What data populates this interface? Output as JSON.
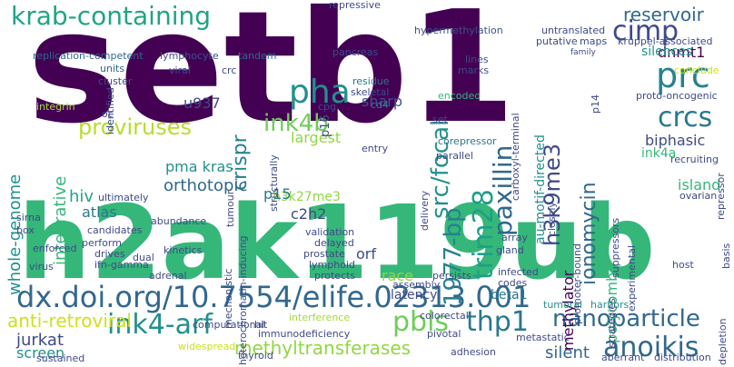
{
  "words": [
    {
      "text": "setb1",
      "color": "#440154"
    },
    {
      "text": "h2ak119ub",
      "color": "#35b779"
    },
    {
      "text": "dx.doi.org/10.7554/elife.02313.001",
      "color": "#31688e"
    },
    {
      "text": "krab-containing",
      "color": "#20a486"
    },
    {
      "text": "pha",
      "color": "#21918c"
    },
    {
      "text": "prc",
      "color": "#26828e"
    },
    {
      "text": "cimp",
      "color": "#3e4a89"
    },
    {
      "text": "crcs",
      "color": "#2a788e"
    },
    {
      "text": "ink4-arf",
      "color": "#21918c"
    },
    {
      "text": "pbls",
      "color": "#6ece58"
    },
    {
      "text": "thp1",
      "color": "#2a788e"
    },
    {
      "text": "anoikis",
      "color": "#31688e"
    },
    {
      "text": "nanoparticle",
      "color": "#31688e"
    },
    {
      "text": "proviruses",
      "color": "#b5de2b"
    },
    {
      "text": "ink4b",
      "color": "#6ece58"
    },
    {
      "text": "trim28",
      "color": "#1f9e89"
    },
    {
      "text": "paxillin",
      "color": "#31688e"
    },
    {
      "text": "ionomycin",
      "color": "#31688e"
    },
    {
      "text": "h3k9me3",
      "color": "#3e4a89"
    },
    {
      "text": "src/focal",
      "color": "#21918c"
    },
    {
      "text": "1977-bp",
      "color": "#26828e"
    },
    {
      "text": "reservoir",
      "color": "#31688e"
    },
    {
      "text": "anti-retroviral",
      "color": "#cde11d"
    },
    {
      "text": "methyltransferases",
      "color": "#90d743"
    },
    {
      "text": "jurkat",
      "color": "#3e4a89"
    },
    {
      "text": "screen",
      "color": "#21918c"
    },
    {
      "text": "silent",
      "color": "#31688e"
    },
    {
      "text": "crispr",
      "color": "#26828e"
    },
    {
      "text": "largest",
      "color": "#90d743"
    },
    {
      "text": "methylator",
      "color": "#440154"
    },
    {
      "text": "polycomb",
      "color": "#35b779"
    },
    {
      "text": "h3k27me3",
      "color": "#90d743"
    },
    {
      "text": "orthotopic",
      "color": "#31688e"
    },
    {
      "text": "hiv",
      "color": "#20a486"
    },
    {
      "text": "atlas",
      "color": "#2a788e"
    },
    {
      "text": "integrative",
      "color": "#35b779"
    },
    {
      "text": "whole-genome",
      "color": "#21918c"
    },
    {
      "text": "biphasic",
      "color": "#3e4a89"
    },
    {
      "text": "dnmt1",
      "color": "#440154"
    },
    {
      "text": "silences",
      "color": "#21918c"
    },
    {
      "text": "sharp",
      "color": "#3b528b"
    },
    {
      "text": "u937",
      "color": "#3e4a89"
    },
    {
      "text": "p15",
      "color": "#2a788e"
    },
    {
      "text": "c2h2",
      "color": "#3e4a89"
    },
    {
      "text": "pma kras",
      "color": "#21918c"
    },
    {
      "text": "orf",
      "color": "#3e4a89"
    },
    {
      "text": "island",
      "color": "#35b779"
    },
    {
      "text": "ink4a",
      "color": "#35b779"
    },
    {
      "text": "race",
      "color": "#90d743"
    },
    {
      "text": "latency",
      "color": "#3e4a89"
    },
    {
      "text": "beta1",
      "color": "#2a788e"
    },
    {
      "text": "au-motif-directed",
      "color": "#21918c"
    },
    {
      "text": "hypermethylation",
      "color": "#3b528b"
    },
    {
      "text": "replication-competent",
      "color": "#31688e"
    },
    {
      "text": "lymphocyte",
      "color": "#3b528b"
    },
    {
      "text": "tandem",
      "color": "#31688e"
    },
    {
      "text": "pancreas",
      "color": "#3e4a89"
    },
    {
      "text": "residue",
      "color": "#2a788e"
    },
    {
      "text": "skeletal",
      "color": "#3e4a89"
    },
    {
      "text": "encoded",
      "color": "#35b779"
    },
    {
      "text": "viral",
      "color": "#3e4a89"
    },
    {
      "text": "cluster",
      "color": "#3e4a89"
    },
    {
      "text": "units",
      "color": "#31688e"
    },
    {
      "text": "integrin",
      "color": "#a5db36"
    },
    {
      "text": "identified",
      "color": "#3e4a89"
    },
    {
      "text": "oc",
      "color": "#3e4a89"
    },
    {
      "text": "cd4",
      "color": "#26828e"
    },
    {
      "text": "cpg",
      "color": "#3e4a89"
    },
    {
      "text": "corepressor",
      "color": "#2a788e"
    },
    {
      "text": "set",
      "color": "#3e4a89"
    },
    {
      "text": "entry",
      "color": "#3e4a89"
    },
    {
      "text": "validation",
      "color": "#3e4a89"
    },
    {
      "text": "delayed",
      "color": "#3e4a89"
    },
    {
      "text": "prostate",
      "color": "#3e4a89"
    },
    {
      "text": "lymphoid",
      "color": "#3e4a89"
    },
    {
      "text": "protects",
      "color": "#3e4a89"
    },
    {
      "text": "assembly",
      "color": "#3e4a89"
    },
    {
      "text": "interference",
      "color": "#a5db36"
    },
    {
      "text": "colorectal",
      "color": "#3e4a89"
    },
    {
      "text": "hit",
      "color": "#3e4a89"
    },
    {
      "text": "computational",
      "color": "#3e4a89"
    },
    {
      "text": "immunodeficiency",
      "color": "#3e4a89"
    },
    {
      "text": "thyroid",
      "color": "#3e4a89"
    },
    {
      "text": "tumoral",
      "color": "#21918c"
    },
    {
      "text": "harbors",
      "color": "#21918c"
    },
    {
      "text": "pivotal",
      "color": "#3e4a89"
    },
    {
      "text": "metastatic",
      "color": "#3e4a89"
    },
    {
      "text": "adhesion",
      "color": "#3e4a89"
    },
    {
      "text": "sustained",
      "color": "#3e4a89"
    },
    {
      "text": "widespread",
      "color": "#cde11d"
    },
    {
      "text": "persists",
      "color": "#3e4a89"
    },
    {
      "text": "infected",
      "color": "#3e4a89"
    },
    {
      "text": "codes",
      "color": "#3e4a89"
    },
    {
      "text": "gland",
      "color": "#3e4a89"
    },
    {
      "text": "array",
      "color": "#3e4a89"
    },
    {
      "text": "ovarian",
      "color": "#3e4a89"
    },
    {
      "text": "host",
      "color": "#3e4a89"
    },
    {
      "text": "recruiting",
      "color": "#3e4a89"
    },
    {
      "text": "kinetics",
      "color": "#3e4a89"
    },
    {
      "text": "dual",
      "color": "#3e4a89"
    },
    {
      "text": "adrenal",
      "color": "#3e4a89"
    },
    {
      "text": "ifn-gamma",
      "color": "#3e4a89"
    },
    {
      "text": "virus",
      "color": "#3e4a89"
    },
    {
      "text": "enforced",
      "color": "#3e4a89"
    },
    {
      "text": "drives",
      "color": "#3e4a89"
    },
    {
      "text": "perform",
      "color": "#3e4a89"
    },
    {
      "text": "candidates",
      "color": "#3e4a89"
    },
    {
      "text": "abundance",
      "color": "#3e4a89"
    },
    {
      "text": "ultimately",
      "color": "#3e4a89"
    },
    {
      "text": "parallel",
      "color": "#3e4a89"
    },
    {
      "text": "tumour",
      "color": "#3e4a89"
    },
    {
      "text": "mechanistic",
      "color": "#3e4a89"
    },
    {
      "text": "heterochromatin-inducing",
      "color": "#3e4a89"
    },
    {
      "text": "structurally",
      "color": "#3e4a89"
    },
    {
      "text": "p16",
      "color": "#3e4a89"
    },
    {
      "text": "marks",
      "color": "#3e4a89"
    },
    {
      "text": "lines",
      "color": "#3e4a89"
    },
    {
      "text": "carboxyl-terminal",
      "color": "#3e4a89"
    },
    {
      "text": "p14",
      "color": "#3e4a89"
    },
    {
      "text": "untranslated",
      "color": "#3e4a89"
    },
    {
      "text": "putative",
      "color": "#3e4a89"
    },
    {
      "text": "maps",
      "color": "#3e4a89"
    },
    {
      "text": "kruppel-associated",
      "color": "#3e4a89"
    },
    {
      "text": "proto-oncogenic",
      "color": "#3e4a89"
    },
    {
      "text": "repressive",
      "color": "#3e4a89"
    },
    {
      "text": "promoter-bound",
      "color": "#3e4a89"
    },
    {
      "text": "suppressors",
      "color": "#3e4a89"
    },
    {
      "text": "experimental",
      "color": "#3e4a89"
    },
    {
      "text": "strategies",
      "color": "#3e4a89"
    },
    {
      "text": "closely",
      "color": "#3e4a89"
    },
    {
      "text": "depletion",
      "color": "#3e4a89"
    },
    {
      "text": "aberrant",
      "color": "#3e4a89"
    },
    {
      "text": "distribution",
      "color": "#3e4a89"
    },
    {
      "text": "repressor",
      "color": "#3e4a89"
    },
    {
      "text": "basis",
      "color": "#3e4a89"
    },
    {
      "text": "delivery",
      "color": "#3e4a89"
    },
    {
      "text": "conclude",
      "color": "#cde11d"
    },
    {
      "text": "family",
      "color": "#3e4a89"
    },
    {
      "text": "crc",
      "color": "#3e4a89"
    },
    {
      "text": "sirna",
      "color": "#3e4a89"
    },
    {
      "text": "box",
      "color": "#3e4a89"
    }
  ]
}
